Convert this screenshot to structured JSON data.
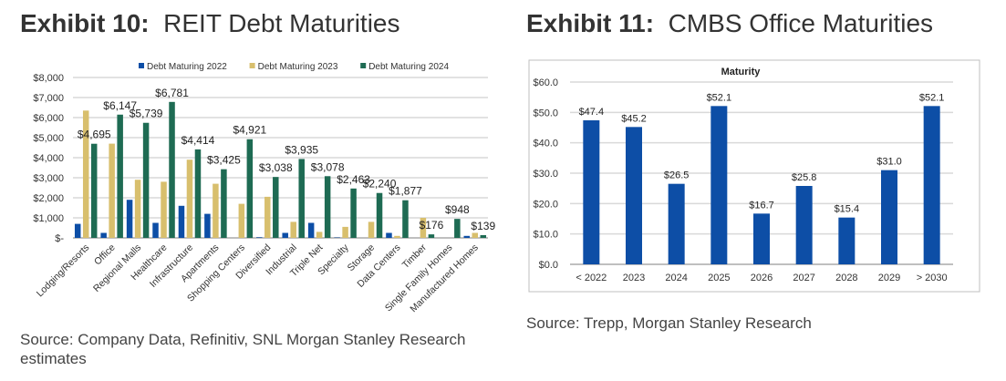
{
  "exhibit10": {
    "label": "Exhibit 10:",
    "title": "REIT Debt Maturities",
    "source": "Source: Company Data, Refinitiv, SNL Morgan Stanley Research estimates"
  },
  "exhibit11": {
    "label": "Exhibit 11:",
    "title": "CMBS Office Maturities",
    "source": "Source: Trepp, Morgan Stanley Research"
  },
  "chart_data": [
    {
      "type": "bar",
      "title": "REIT Debt Maturities",
      "categories": [
        "Lodging/Resorts",
        "Office",
        "Regional Malls",
        "Healthcare",
        "Infrastructure",
        "Apartments",
        "Shopping Centers",
        "Diversified",
        "Industrial",
        "Triple Net",
        "Specialty",
        "Storage",
        "Data Centers",
        "Timber",
        "Single Family Homes",
        "Manufactured Homes"
      ],
      "series": [
        {
          "name": "Debt Maturing 2022",
          "color": "#0d4ea6",
          "values": [
            700,
            250,
            1900,
            750,
            1600,
            1200,
            0,
            30,
            250,
            750,
            20,
            0,
            250,
            0,
            0,
            100
          ]
        },
        {
          "name": "Debt Maturing 2023",
          "color": "#d8bf6d",
          "values": [
            6350,
            4700,
            2900,
            2800,
            3900,
            2700,
            1700,
            2050,
            800,
            300,
            550,
            800,
            100,
            1000,
            0,
            250
          ]
        },
        {
          "name": "Debt Maturing 2024",
          "color": "#1e6b53",
          "values": [
            4695,
            6147,
            5739,
            6781,
            4414,
            3425,
            4921,
            3038,
            3935,
            3078,
            2463,
            2240,
            1877,
            176,
            948,
            139
          ],
          "labels": [
            "$4,695",
            "$6,147",
            "$5,739",
            "$6,781",
            "$4,414",
            "$3,425",
            "$4,921",
            "$3,038",
            "$3,935",
            "$3,078",
            "$2,463",
            "$2,240",
            "$1,877",
            "$176",
            "$948",
            "$139"
          ]
        }
      ],
      "yticks": [
        "$-",
        "$1,000",
        "$2,000",
        "$3,000",
        "$4,000",
        "$5,000",
        "$6,000",
        "$7,000",
        "$8,000"
      ],
      "ylim": [
        0,
        8000
      ],
      "legend": "top",
      "grid": true
    },
    {
      "type": "bar",
      "title": "Maturity",
      "categories": [
        "< 2022",
        "2023",
        "2024",
        "2025",
        "2026",
        "2027",
        "2028",
        "2029",
        "> 2030"
      ],
      "values": [
        47.4,
        45.2,
        26.5,
        52.1,
        16.7,
        25.8,
        15.4,
        31.0,
        52.1
      ],
      "labels": [
        "$47.4",
        "$45.2",
        "$26.5",
        "$52.1",
        "$16.7",
        "$25.8",
        "$15.4",
        "$31.0",
        "$52.1"
      ],
      "color": "#0d4ea6",
      "yticks": [
        "$0.0",
        "$10.0",
        "$20.0",
        "$30.0",
        "$40.0",
        "$50.0",
        "$60.0"
      ],
      "ylim": [
        0,
        60
      ],
      "grid": true
    }
  ]
}
